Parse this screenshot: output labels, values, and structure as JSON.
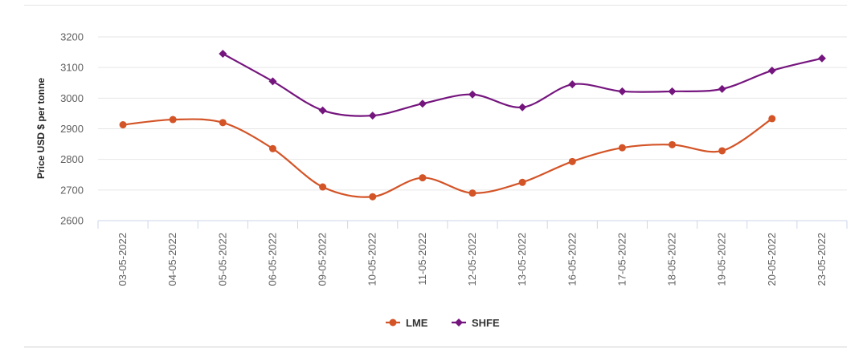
{
  "chart_data": {
    "type": "line",
    "title": "",
    "xlabel": "",
    "ylabel": "Price USD $ per tonne",
    "categories": [
      "03-05-2022",
      "04-05-2022",
      "05-05-2022",
      "06-05-2022",
      "09-05-2022",
      "10-05-2022",
      "11-05-2022",
      "12-05-2022",
      "13-05-2022",
      "16-05-2022",
      "17-05-2022",
      "18-05-2022",
      "19-05-2022",
      "20-05-2022",
      "23-05-2022"
    ],
    "ylim": [
      2600,
      3200
    ],
    "yticks": [
      2600,
      2700,
      2800,
      2900,
      3000,
      3100,
      3200
    ],
    "grid": true,
    "legend_position": "bottom-center",
    "series": [
      {
        "name": "LME",
        "color": "#d35427",
        "marker": "circle",
        "values": [
          2913,
          2930,
          2920,
          2835,
          2710,
          2678,
          2740,
          2690,
          2725,
          2793,
          2838,
          2848,
          2828,
          2933,
          null
        ]
      },
      {
        "name": "SHFE",
        "color": "#75157e",
        "marker": "diamond",
        "values": [
          null,
          null,
          3145,
          3055,
          2960,
          2943,
          2982,
          3012,
          2970,
          3045,
          3022,
          3022,
          3030,
          3090,
          3130
        ]
      }
    ]
  }
}
